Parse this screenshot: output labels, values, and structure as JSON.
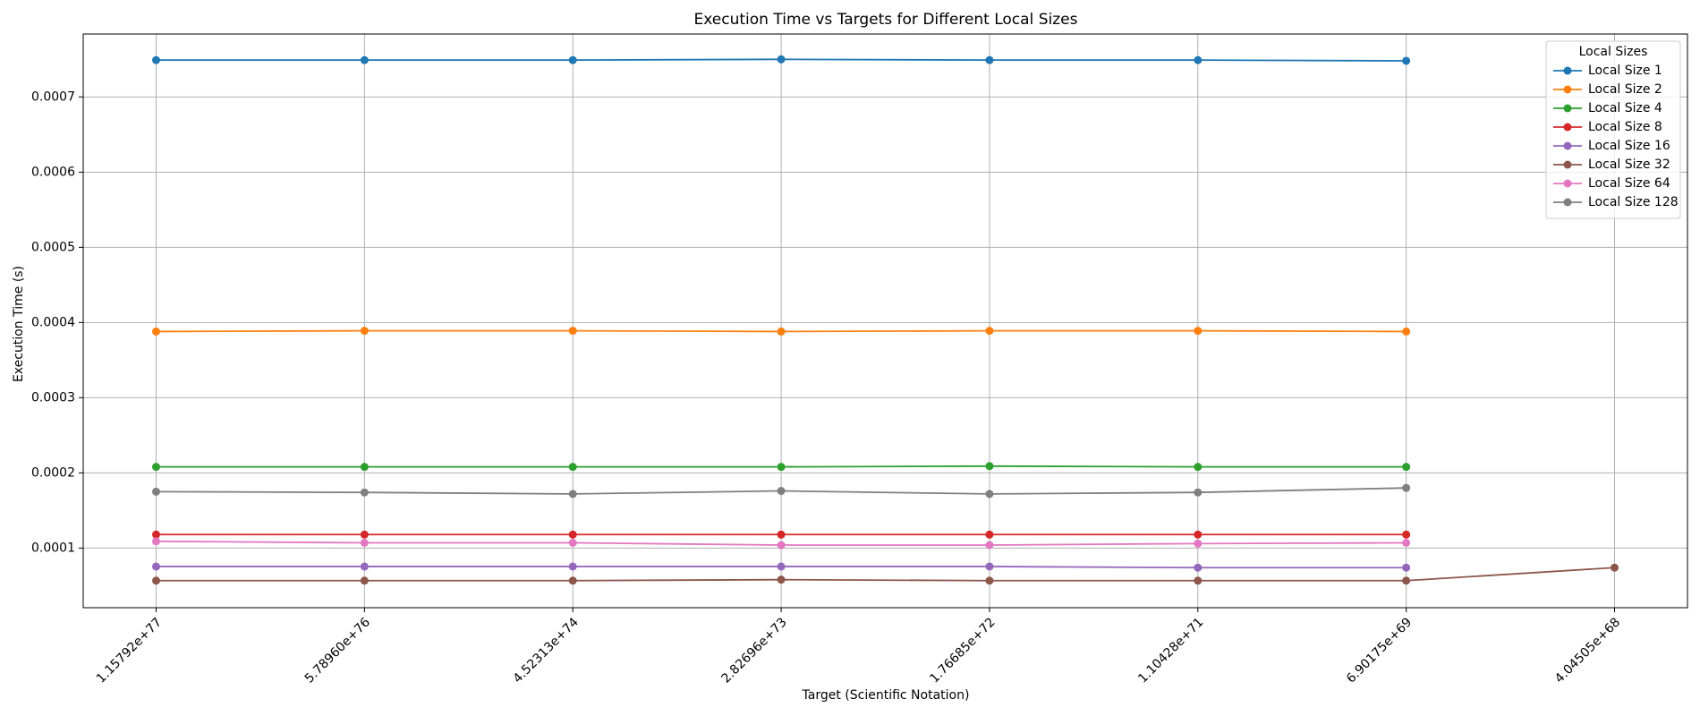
{
  "chart_data": {
    "type": "line",
    "title": "Execution Time vs Targets for Different Local Sizes",
    "x_label": "Target (Scientific Notation)",
    "y_label": "Execution Time (s)",
    "categories": [
      "1.15792e+77",
      "5.78960e+76",
      "4.52313e+74",
      "2.82696e+73",
      "1.76685e+72",
      "1.10428e+71",
      "6.90175e+69",
      "4.04505e+68"
    ],
    "series": [
      {
        "name": "Local Size 1",
        "color": "#1f77b4",
        "values": [
          0.000749,
          0.000749,
          0.000749,
          0.00075,
          0.000749,
          0.000749,
          0.000748,
          null
        ]
      },
      {
        "name": "Local Size 2",
        "color": "#ff7f0e",
        "values": [
          0.000388,
          0.000389,
          0.000389,
          0.000388,
          0.000389,
          0.000389,
          0.000388,
          null
        ]
      },
      {
        "name": "Local Size 4",
        "color": "#2ca02c",
        "values": [
          0.000208,
          0.000208,
          0.000208,
          0.000208,
          0.000209,
          0.000208,
          0.000208,
          null
        ]
      },
      {
        "name": "Local Size 8",
        "color": "#d62728",
        "values": [
          0.000118,
          0.000118,
          0.000118,
          0.000118,
          0.000118,
          0.000118,
          0.000118,
          null
        ]
      },
      {
        "name": "Local Size 16",
        "color": "#9467bd",
        "values": [
          7.55e-05,
          7.55e-05,
          7.55e-05,
          7.55e-05,
          7.55e-05,
          7.4e-05,
          7.4e-05,
          null
        ]
      },
      {
        "name": "Local Size 32",
        "color": "#8c564b",
        "values": [
          5.67e-05,
          5.67e-05,
          5.67e-05,
          5.8e-05,
          5.67e-05,
          5.67e-05,
          5.67e-05,
          7.4e-05
        ]
      },
      {
        "name": "Local Size 64",
        "color": "#e377c2",
        "values": [
          0.000109,
          0.000107,
          0.000107,
          0.000104,
          0.000104,
          0.000106,
          0.000107,
          null
        ]
      },
      {
        "name": "Local Size 128",
        "color": "#7f7f7f",
        "values": [
          0.000175,
          0.000174,
          0.000172,
          0.000176,
          0.000172,
          0.000174,
          0.00018,
          null
        ]
      }
    ],
    "legend_title": "Local Sizes",
    "legend": "upper right",
    "grid": true,
    "ylim": [
      2.07e-05,
      0.0007837
    ],
    "yticks": [
      0.0001,
      0.0002,
      0.0003,
      0.0004,
      0.0005,
      0.0006,
      0.0007
    ]
  }
}
